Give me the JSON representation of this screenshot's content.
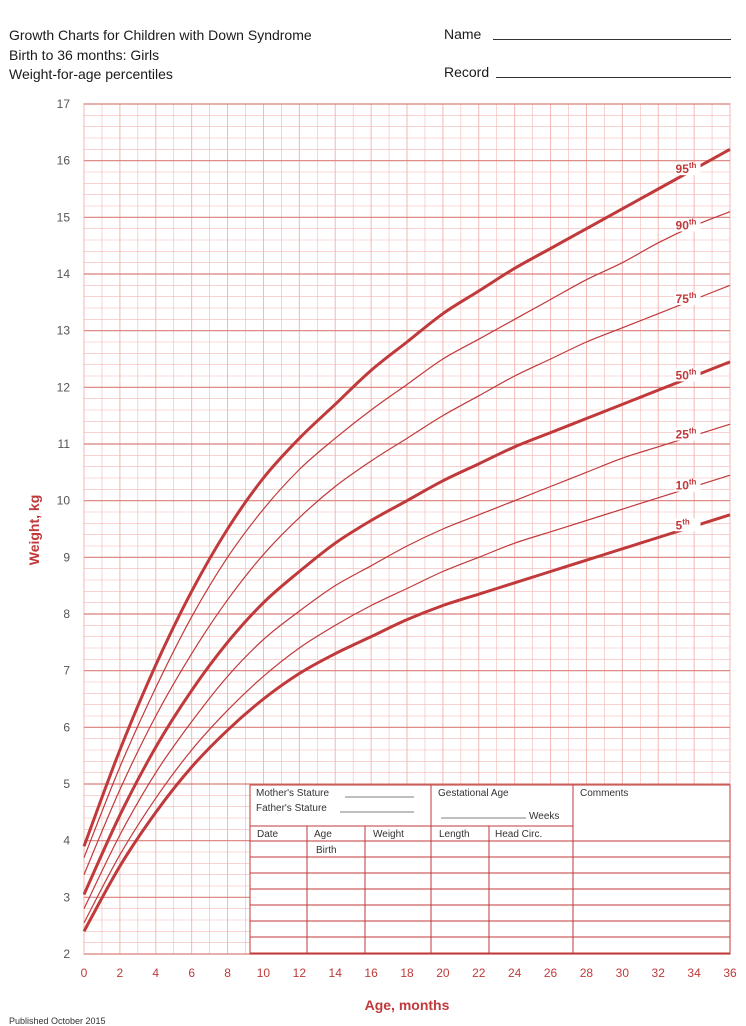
{
  "header": {
    "title_line1": "Growth Charts for Children with Down Syndrome",
    "title_line2": "Birth to 36 months: Girls",
    "title_line3": "Weight-for-age percentiles",
    "name_label": "Name",
    "record_label": "Record"
  },
  "record_table": {
    "mothers_stature": "Mother's Stature",
    "fathers_stature": "Father's Stature",
    "gestational_age": "Gestational Age",
    "weeks": "Weeks",
    "comments": "Comments",
    "col_date": "Date",
    "col_age": "Age",
    "col_weight": "Weight",
    "col_length": "Length",
    "col_head": "Head Circ.",
    "birth": "Birth"
  },
  "footer": {
    "published": "Published October 2015"
  },
  "colors": {
    "grid": "#f2b8b5",
    "major_grid": "#d97f7a",
    "curve": "#c0393b",
    "axis_text": "#c0393b"
  },
  "chart_data": {
    "type": "line",
    "xlabel": "Age, months",
    "ylabel": "Weight, kg",
    "xlim": [
      0,
      36
    ],
    "ylim": [
      2,
      17
    ],
    "x_ticks": [
      0,
      2,
      4,
      6,
      8,
      10,
      12,
      14,
      16,
      18,
      20,
      22,
      24,
      26,
      28,
      30,
      32,
      34,
      36
    ],
    "y_ticks": [
      2,
      3,
      4,
      5,
      6,
      7,
      8,
      9,
      10,
      11,
      12,
      13,
      14,
      15,
      16,
      17
    ],
    "grid": true,
    "x": [
      0,
      2,
      4,
      6,
      8,
      10,
      12,
      14,
      16,
      18,
      20,
      22,
      24,
      26,
      28,
      30,
      32,
      34,
      36
    ],
    "series": [
      {
        "name": "95",
        "label": "95th",
        "label_x": 33.8,
        "values": [
          3.9,
          5.6,
          7.1,
          8.4,
          9.5,
          10.4,
          11.1,
          11.7,
          12.3,
          12.8,
          13.3,
          13.7,
          14.1,
          14.45,
          14.8,
          15.15,
          15.5,
          15.85,
          16.2
        ],
        "bold": true
      },
      {
        "name": "90",
        "label": "90th",
        "label_x": 33.8,
        "values": [
          3.7,
          5.3,
          6.7,
          7.95,
          9.0,
          9.85,
          10.55,
          11.1,
          11.6,
          12.05,
          12.5,
          12.85,
          13.2,
          13.55,
          13.9,
          14.2,
          14.55,
          14.85,
          15.1
        ],
        "bold": false
      },
      {
        "name": "75",
        "label": "75th",
        "label_x": 33.8,
        "values": [
          3.4,
          4.9,
          6.2,
          7.3,
          8.25,
          9.05,
          9.7,
          10.25,
          10.7,
          11.1,
          11.5,
          11.85,
          12.2,
          12.5,
          12.8,
          13.05,
          13.3,
          13.55,
          13.8
        ],
        "bold": false
      },
      {
        "name": "50",
        "label": "50th",
        "label_x": 33.8,
        "values": [
          3.05,
          4.45,
          5.65,
          6.65,
          7.5,
          8.2,
          8.75,
          9.25,
          9.65,
          10.0,
          10.35,
          10.65,
          10.95,
          11.2,
          11.45,
          11.7,
          11.95,
          12.2,
          12.45
        ],
        "bold": true
      },
      {
        "name": "25",
        "label": "25th",
        "label_x": 33.8,
        "values": [
          2.8,
          4.1,
          5.2,
          6.1,
          6.9,
          7.55,
          8.05,
          8.5,
          8.85,
          9.2,
          9.5,
          9.75,
          10.0,
          10.25,
          10.5,
          10.75,
          10.95,
          11.15,
          11.35
        ],
        "bold": false
      },
      {
        "name": "10",
        "label": "10th",
        "label_x": 33.8,
        "values": [
          2.55,
          3.75,
          4.75,
          5.6,
          6.3,
          6.9,
          7.4,
          7.8,
          8.15,
          8.45,
          8.75,
          9.0,
          9.25,
          9.45,
          9.65,
          9.85,
          10.05,
          10.25,
          10.45
        ],
        "bold": false
      },
      {
        "name": "5",
        "label": "5th",
        "label_x": 33.8,
        "values": [
          2.4,
          3.55,
          4.5,
          5.3,
          5.95,
          6.5,
          6.95,
          7.3,
          7.6,
          7.9,
          8.15,
          8.35,
          8.55,
          8.75,
          8.95,
          9.15,
          9.35,
          9.55,
          9.75
        ],
        "bold": true
      }
    ]
  }
}
